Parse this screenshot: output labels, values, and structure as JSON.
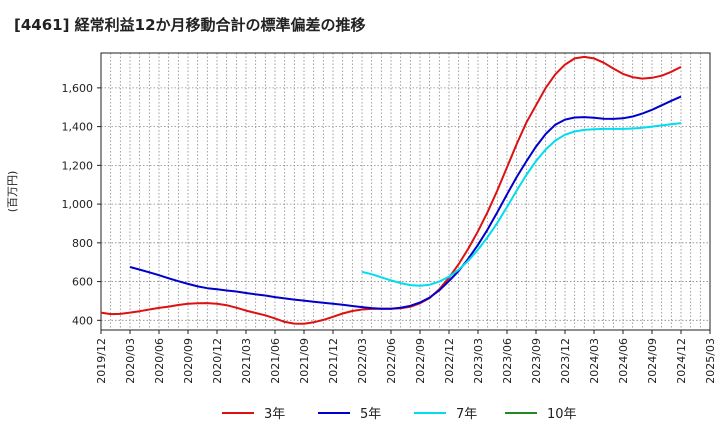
{
  "chart_data": {
    "type": "line",
    "title": "[4461]  経常利益12か月移動合計の標準偏差の推移",
    "ylabel": "(百万円)",
    "xlabel": "",
    "ylim": [
      350,
      1780
    ],
    "yticks": [
      400,
      600,
      800,
      1000,
      1200,
      1400,
      1600
    ],
    "ytick_labels": [
      "400",
      "600",
      "800",
      "1,000",
      "1,200",
      "1,400",
      "1,600"
    ],
    "x_start": "2019-12",
    "x_end": "2025-03",
    "xtick_labels": [
      "2019/12",
      "2020/03",
      "2020/06",
      "2020/09",
      "2020/12",
      "2021/03",
      "2021/06",
      "2021/09",
      "2021/12",
      "2022/03",
      "2022/06",
      "2022/09",
      "2022/12",
      "2023/03",
      "2023/06",
      "2023/09",
      "2023/12",
      "2024/03",
      "2024/06",
      "2024/09",
      "2024/12",
      "2025/03"
    ],
    "grid": true,
    "legend_position": "bottom",
    "series": [
      {
        "name": "3年",
        "color": "#dd1111",
        "points": [
          [
            "2019-12",
            440
          ],
          [
            "2020-01",
            432
          ],
          [
            "2020-02",
            433
          ],
          [
            "2020-03",
            440
          ],
          [
            "2020-04",
            447
          ],
          [
            "2020-05",
            456
          ],
          [
            "2020-06",
            464
          ],
          [
            "2020-07",
            471
          ],
          [
            "2020-08",
            479
          ],
          [
            "2020-09",
            485
          ],
          [
            "2020-10",
            488
          ],
          [
            "2020-11",
            489
          ],
          [
            "2020-12",
            486
          ],
          [
            "2021-01",
            478
          ],
          [
            "2021-02",
            465
          ],
          [
            "2021-03",
            450
          ],
          [
            "2021-04",
            438
          ],
          [
            "2021-05",
            426
          ],
          [
            "2021-06",
            410
          ],
          [
            "2021-07",
            392
          ],
          [
            "2021-08",
            383
          ],
          [
            "2021-09",
            382
          ],
          [
            "2021-10",
            390
          ],
          [
            "2021-11",
            402
          ],
          [
            "2021-12",
            418
          ],
          [
            "2022-01",
            435
          ],
          [
            "2022-02",
            448
          ],
          [
            "2022-03",
            456
          ],
          [
            "2022-04",
            459
          ],
          [
            "2022-05",
            460
          ],
          [
            "2022-06",
            460
          ],
          [
            "2022-07",
            462
          ],
          [
            "2022-08",
            470
          ],
          [
            "2022-09",
            488
          ],
          [
            "2022-10",
            515
          ],
          [
            "2022-11",
            560
          ],
          [
            "2022-12",
            620
          ],
          [
            "2023-01",
            690
          ],
          [
            "2023-02",
            770
          ],
          [
            "2023-03",
            860
          ],
          [
            "2023-04",
            960
          ],
          [
            "2023-05",
            1070
          ],
          [
            "2023-06",
            1190
          ],
          [
            "2023-07",
            1310
          ],
          [
            "2023-08",
            1420
          ],
          [
            "2023-09",
            1510
          ],
          [
            "2023-10",
            1600
          ],
          [
            "2023-11",
            1670
          ],
          [
            "2023-12",
            1720
          ],
          [
            "2024-01",
            1752
          ],
          [
            "2024-02",
            1760
          ],
          [
            "2024-03",
            1752
          ],
          [
            "2024-04",
            1730
          ],
          [
            "2024-05",
            1700
          ],
          [
            "2024-06",
            1672
          ],
          [
            "2024-07",
            1655
          ],
          [
            "2024-08",
            1648
          ],
          [
            "2024-09",
            1652
          ],
          [
            "2024-10",
            1663
          ],
          [
            "2024-11",
            1683
          ],
          [
            "2024-12",
            1708
          ]
        ]
      },
      {
        "name": "5年",
        "color": "#0000cc",
        "points": [
          [
            "2020-03",
            675
          ],
          [
            "2020-04",
            662
          ],
          [
            "2020-05",
            648
          ],
          [
            "2020-06",
            633
          ],
          [
            "2020-07",
            617
          ],
          [
            "2020-08",
            602
          ],
          [
            "2020-09",
            588
          ],
          [
            "2020-10",
            575
          ],
          [
            "2020-11",
            566
          ],
          [
            "2020-12",
            560
          ],
          [
            "2021-01",
            554
          ],
          [
            "2021-02",
            549
          ],
          [
            "2021-03",
            541
          ],
          [
            "2021-04",
            534
          ],
          [
            "2021-05",
            528
          ],
          [
            "2021-06",
            520
          ],
          [
            "2021-07",
            513
          ],
          [
            "2021-08",
            507
          ],
          [
            "2021-09",
            502
          ],
          [
            "2021-10",
            496
          ],
          [
            "2021-11",
            491
          ],
          [
            "2021-12",
            486
          ],
          [
            "2022-01",
            480
          ],
          [
            "2022-02",
            474
          ],
          [
            "2022-03",
            468
          ],
          [
            "2022-04",
            463
          ],
          [
            "2022-05",
            460
          ],
          [
            "2022-06",
            460
          ],
          [
            "2022-07",
            465
          ],
          [
            "2022-08",
            475
          ],
          [
            "2022-09",
            492
          ],
          [
            "2022-10",
            518
          ],
          [
            "2022-11",
            555
          ],
          [
            "2022-12",
            603
          ],
          [
            "2023-01",
            655
          ],
          [
            "2023-02",
            718
          ],
          [
            "2023-03",
            790
          ],
          [
            "2023-04",
            870
          ],
          [
            "2023-05",
            958
          ],
          [
            "2023-06",
            1050
          ],
          [
            "2023-07",
            1140
          ],
          [
            "2023-08",
            1220
          ],
          [
            "2023-09",
            1297
          ],
          [
            "2023-10",
            1362
          ],
          [
            "2023-11",
            1410
          ],
          [
            "2023-12",
            1436
          ],
          [
            "2024-01",
            1447
          ],
          [
            "2024-02",
            1449
          ],
          [
            "2024-03",
            1446
          ],
          [
            "2024-04",
            1441
          ],
          [
            "2024-05",
            1440
          ],
          [
            "2024-06",
            1443
          ],
          [
            "2024-07",
            1452
          ],
          [
            "2024-08",
            1467
          ],
          [
            "2024-09",
            1487
          ],
          [
            "2024-10",
            1510
          ],
          [
            "2024-11",
            1533
          ],
          [
            "2024-12",
            1555
          ]
        ]
      },
      {
        "name": "7年",
        "color": "#00ddee",
        "points": [
          [
            "2022-03",
            650
          ],
          [
            "2022-04",
            638
          ],
          [
            "2022-05",
            622
          ],
          [
            "2022-06",
            606
          ],
          [
            "2022-07",
            592
          ],
          [
            "2022-08",
            582
          ],
          [
            "2022-09",
            578
          ],
          [
            "2022-10",
            584
          ],
          [
            "2022-11",
            600
          ],
          [
            "2022-12",
            625
          ],
          [
            "2023-01",
            662
          ],
          [
            "2023-02",
            708
          ],
          [
            "2023-03",
            765
          ],
          [
            "2023-04",
            830
          ],
          [
            "2023-05",
            903
          ],
          [
            "2023-06",
            985
          ],
          [
            "2023-07",
            1070
          ],
          [
            "2023-08",
            1150
          ],
          [
            "2023-09",
            1222
          ],
          [
            "2023-10",
            1282
          ],
          [
            "2023-11",
            1328
          ],
          [
            "2023-12",
            1358
          ],
          [
            "2024-01",
            1375
          ],
          [
            "2024-02",
            1383
          ],
          [
            "2024-03",
            1386
          ],
          [
            "2024-04",
            1388
          ],
          [
            "2024-05",
            1388
          ],
          [
            "2024-06",
            1388
          ],
          [
            "2024-07",
            1390
          ],
          [
            "2024-08",
            1394
          ],
          [
            "2024-09",
            1400
          ],
          [
            "2024-10",
            1406
          ],
          [
            "2024-11",
            1412
          ],
          [
            "2024-12",
            1418
          ]
        ]
      },
      {
        "name": "10年",
        "color": "#228822",
        "points": []
      }
    ]
  }
}
